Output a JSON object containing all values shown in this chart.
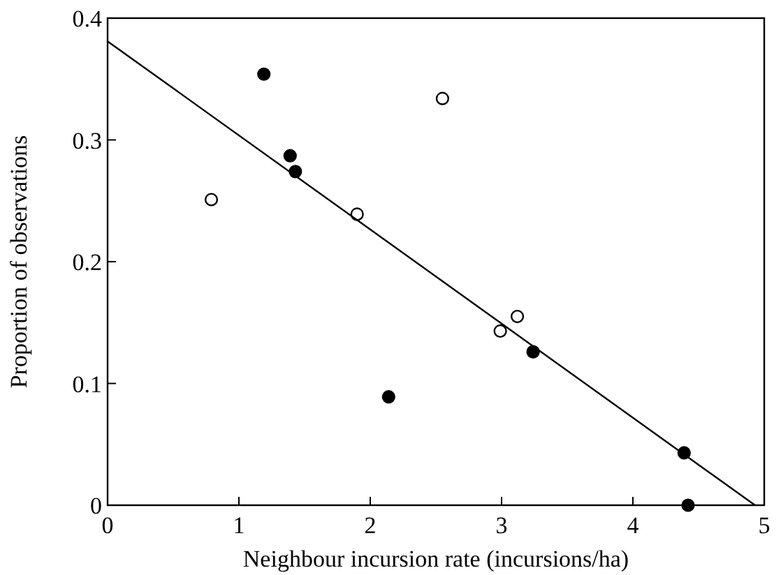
{
  "chart_data": {
    "type": "scatter",
    "xlabel": "Neighbour incursion rate (incursions/ha)",
    "ylabel": "Proportion of observations",
    "xlim": [
      0,
      5
    ],
    "ylim": [
      0,
      0.4
    ],
    "xticks": [
      0,
      1,
      2,
      3,
      4,
      5
    ],
    "yticks": [
      {
        "value": 0,
        "label": "0"
      },
      0.1,
      0.2,
      0.3,
      0.4
    ],
    "grid": false,
    "series": [
      {
        "marker": "circle",
        "color": "#000000",
        "x": [
          1.19,
          1.39,
          1.43,
          2.14,
          3.24,
          4.39,
          4.42
        ],
        "values": [
          0.354,
          0.287,
          0.274,
          0.089,
          0.126,
          0.043,
          0
        ]
      },
      {
        "marker": "circle",
        "color": "#ffffff",
        "x": [
          0.79,
          1.9,
          2.55,
          2.99,
          3.12
        ],
        "values": [
          0.251,
          0.239,
          0.334,
          0.143,
          0.155
        ]
      },
      {
        "type": "line",
        "color": "#000000",
        "x": [
          0,
          4.93
        ],
        "values": [
          0.381,
          0
        ]
      }
    ]
  }
}
